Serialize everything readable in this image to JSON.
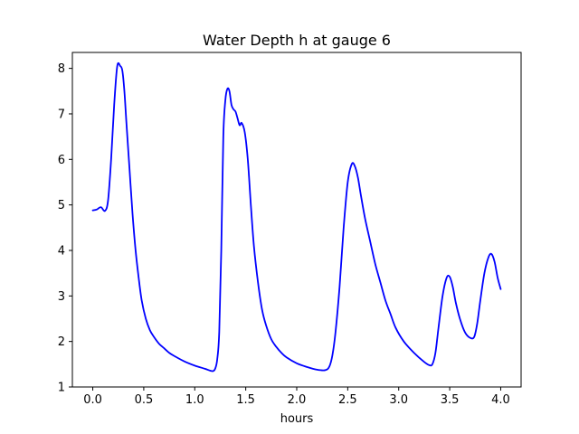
{
  "chart_data": {
    "type": "line",
    "title": "Water Depth h at gauge 6",
    "xlabel": "hours",
    "ylabel": "",
    "xlim": [
      -0.2,
      4.2
    ],
    "ylim": [
      1,
      8.35
    ],
    "xticks": [
      0.0,
      0.5,
      1.0,
      1.5,
      2.0,
      2.5,
      3.0,
      3.5,
      4.0
    ],
    "xtick_labels": [
      "0.0",
      "0.5",
      "1.0",
      "1.5",
      "2.0",
      "2.5",
      "3.0",
      "3.5",
      "4.0"
    ],
    "yticks": [
      1,
      2,
      3,
      4,
      5,
      6,
      7,
      8
    ],
    "ytick_labels": [
      "1",
      "2",
      "3",
      "4",
      "5",
      "6",
      "7",
      "8"
    ],
    "grid": false,
    "series": [
      {
        "color": "#0000ff",
        "x": [
          0.0,
          0.04,
          0.08,
          0.12,
          0.15,
          0.18,
          0.21,
          0.24,
          0.27,
          0.29,
          0.31,
          0.33,
          0.36,
          0.39,
          0.42,
          0.45,
          0.48,
          0.52,
          0.56,
          0.6,
          0.65,
          0.7,
          0.75,
          0.8,
          0.9,
          1.0,
          1.1,
          1.15,
          1.18,
          1.2,
          1.22,
          1.24,
          1.26,
          1.28,
          1.3,
          1.32,
          1.34,
          1.36,
          1.38,
          1.4,
          1.42,
          1.44,
          1.46,
          1.49,
          1.52,
          1.55,
          1.58,
          1.62,
          1.66,
          1.7,
          1.75,
          1.8,
          1.85,
          1.9,
          2.0,
          2.1,
          2.2,
          2.28,
          2.32,
          2.35,
          2.38,
          2.42,
          2.46,
          2.5,
          2.54,
          2.57,
          2.6,
          2.63,
          2.67,
          2.72,
          2.77,
          2.82,
          2.87,
          2.92,
          2.97,
          3.05,
          3.15,
          3.25,
          3.3,
          3.33,
          3.36,
          3.39,
          3.43,
          3.47,
          3.5,
          3.53,
          3.56,
          3.6,
          3.65,
          3.7,
          3.74,
          3.77,
          3.8,
          3.84,
          3.88,
          3.91,
          3.94,
          3.97,
          4.0
        ],
        "y": [
          4.88,
          4.9,
          4.95,
          4.87,
          5.1,
          6.0,
          7.2,
          8.05,
          8.05,
          7.95,
          7.5,
          6.8,
          5.8,
          4.8,
          4.0,
          3.4,
          2.9,
          2.5,
          2.25,
          2.1,
          1.95,
          1.85,
          1.75,
          1.68,
          1.56,
          1.47,
          1.4,
          1.36,
          1.35,
          1.4,
          1.6,
          2.2,
          4.0,
          6.5,
          7.3,
          7.55,
          7.5,
          7.2,
          7.1,
          7.05,
          6.9,
          6.75,
          6.8,
          6.6,
          6.0,
          5.0,
          4.1,
          3.3,
          2.7,
          2.35,
          2.05,
          1.88,
          1.75,
          1.65,
          1.52,
          1.44,
          1.38,
          1.37,
          1.45,
          1.7,
          2.2,
          3.2,
          4.5,
          5.5,
          5.9,
          5.85,
          5.6,
          5.2,
          4.7,
          4.2,
          3.7,
          3.3,
          2.9,
          2.6,
          2.3,
          2.0,
          1.75,
          1.55,
          1.48,
          1.5,
          1.75,
          2.3,
          3.0,
          3.4,
          3.42,
          3.2,
          2.85,
          2.5,
          2.2,
          2.08,
          2.1,
          2.4,
          2.9,
          3.5,
          3.85,
          3.92,
          3.75,
          3.4,
          3.15
        ]
      }
    ]
  }
}
